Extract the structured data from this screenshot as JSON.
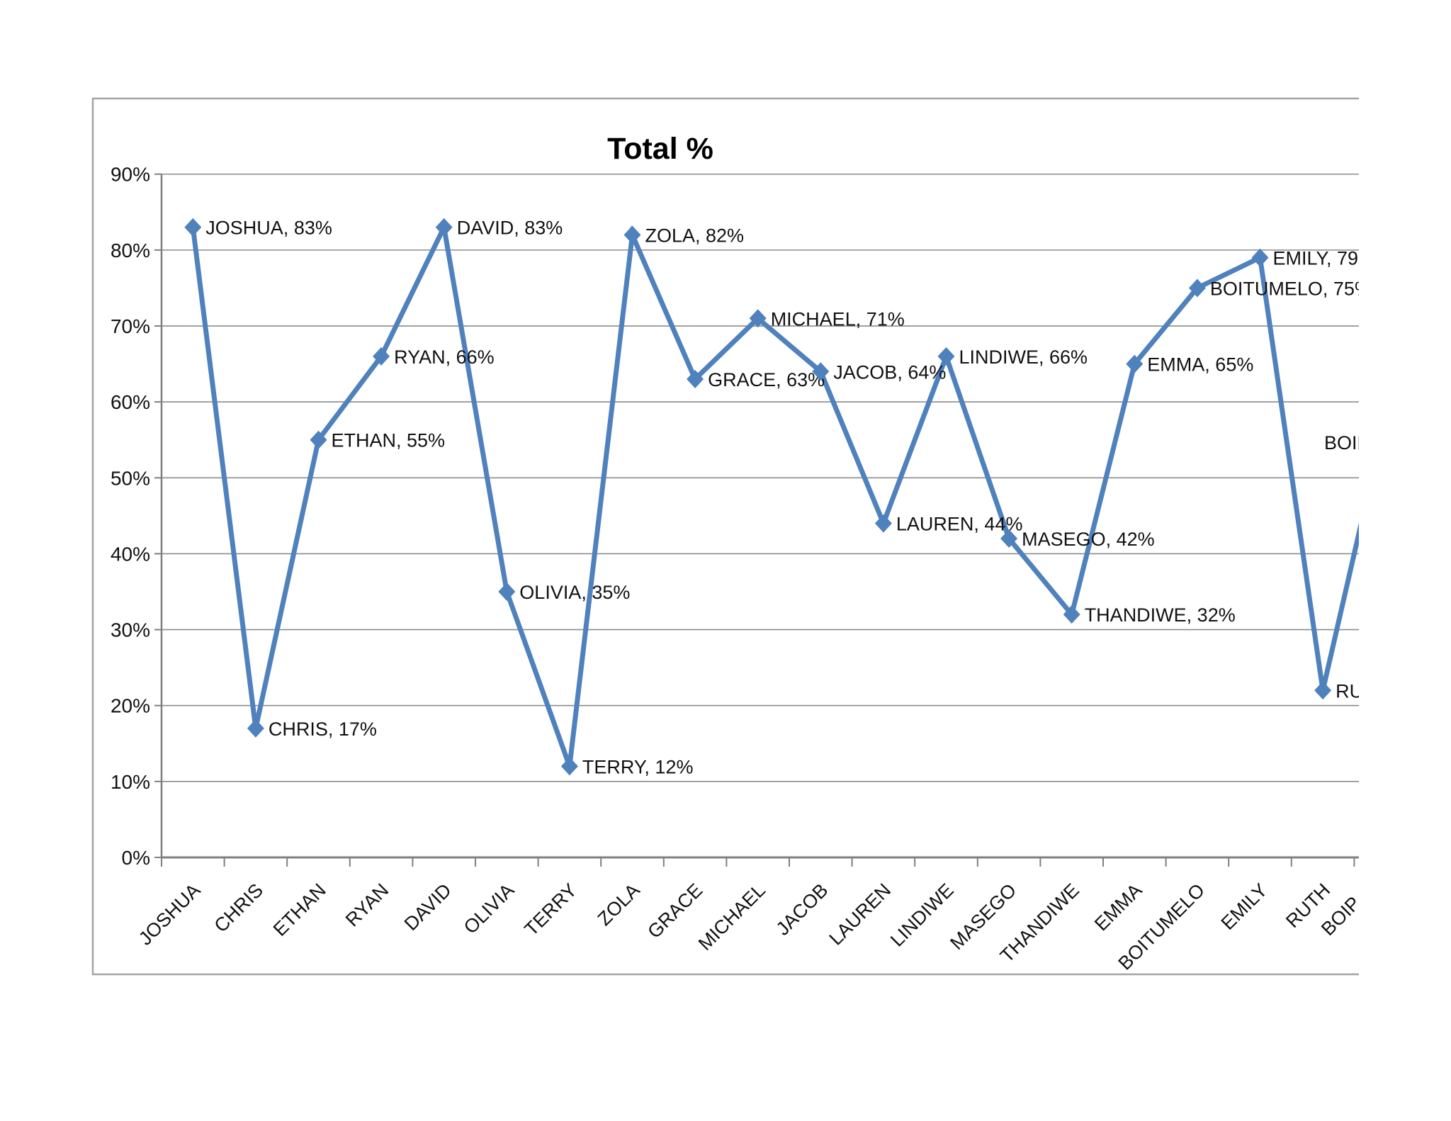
{
  "chart_data": {
    "type": "line",
    "title": "Total %",
    "categories": [
      "JOSHUA",
      "CHRIS",
      "ETHAN",
      "RYAN",
      "DAVID",
      "OLIVIA",
      "TERRY",
      "ZOLA",
      "GRACE",
      "MICHAEL",
      "JACOB",
      "LAUREN",
      "LINDIWE",
      "MASEGO",
      "THANDIWE",
      "EMMA",
      "BOITUMELO",
      "EMILY",
      "RUTH"
    ],
    "values": [
      83,
      17,
      55,
      66,
      83,
      35,
      12,
      82,
      63,
      71,
      64,
      44,
      66,
      42,
      32,
      65,
      75,
      79,
      22
    ],
    "data_label_format": "{name}, {value}%",
    "y_tick_labels": [
      "0%",
      "10%",
      "20%",
      "30%",
      "40%",
      "50%",
      "60%",
      "70%",
      "80%",
      "90%"
    ],
    "ylim": [
      0,
      90
    ],
    "ytick_step": 10,
    "grid": true,
    "legend": "none",
    "marker": "diamond",
    "clipped_20th_point": {
      "visible_x_axis_label_fragment": "BOIP",
      "visible_data_label_fragment": "BOIP",
      "estimated_full_value": 58,
      "note_visible": "rising line segment clipped at right edge of image"
    }
  },
  "colors": {
    "series_line": "#4f81bd",
    "marker_fill": "#4f81bd",
    "gridline": "#8c8c8c",
    "axis_line": "#7f7f7f",
    "chart_border": "#a3a3a3",
    "label_text": "#111111",
    "title_text": "#000000"
  }
}
